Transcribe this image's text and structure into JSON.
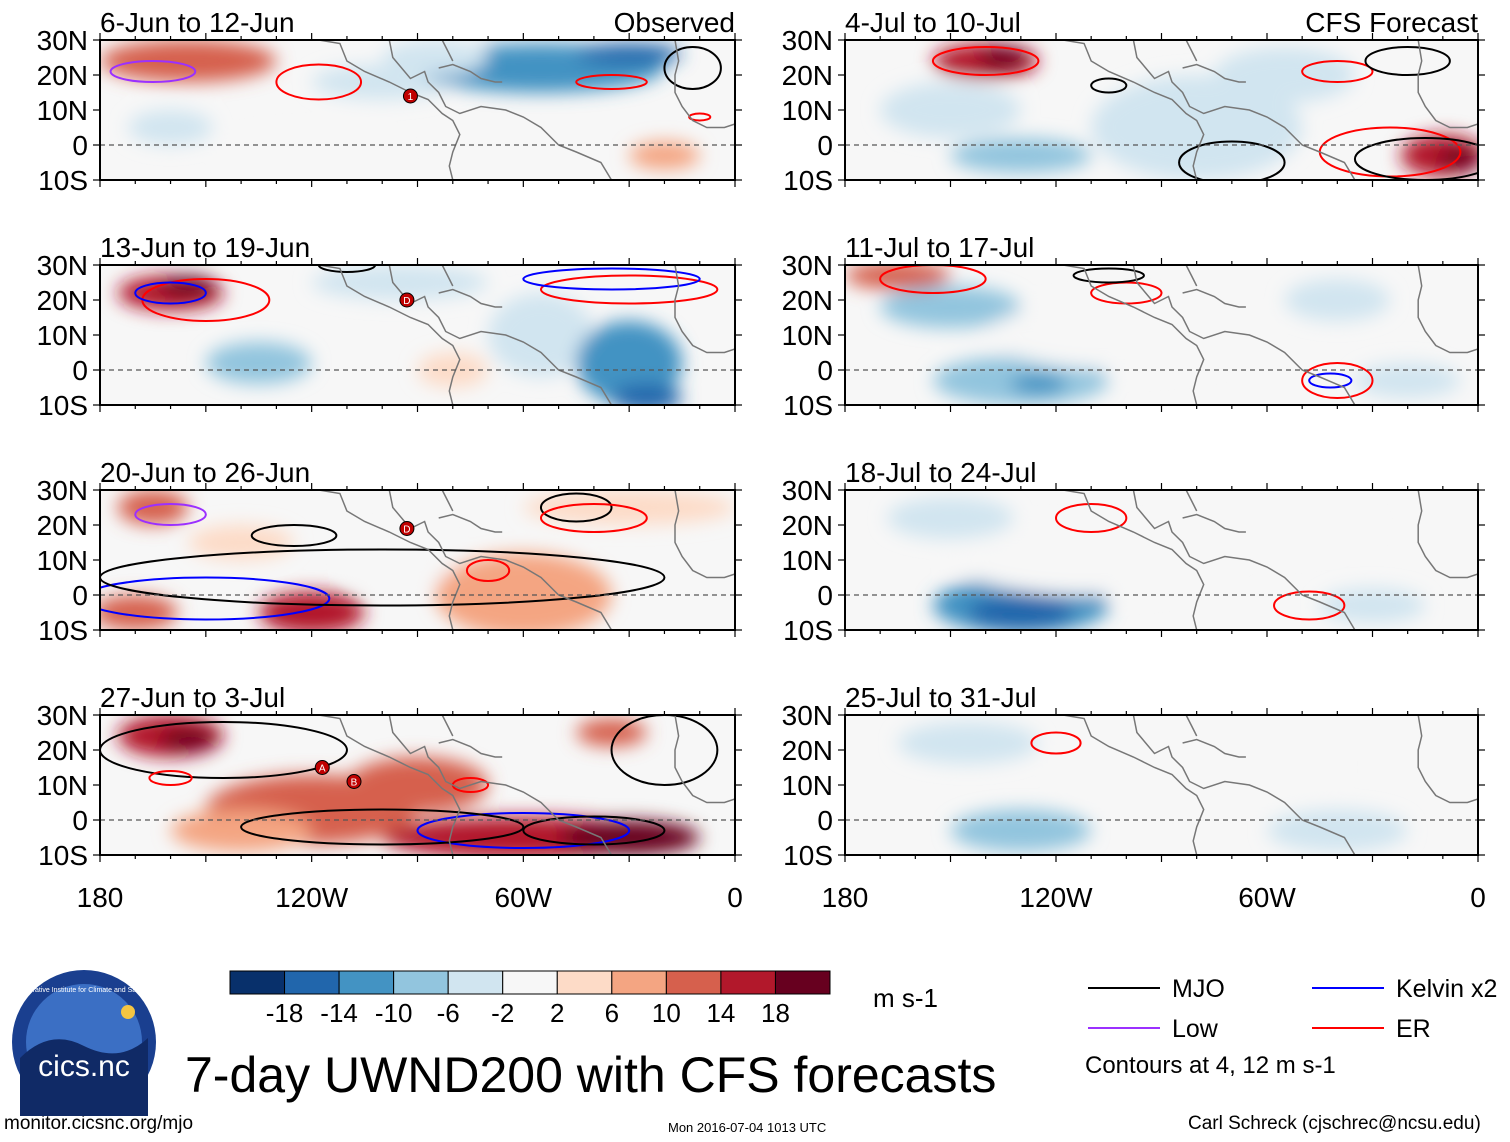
{
  "chart_data": {
    "type": "heatmap",
    "variable": "UWND200",
    "title": "7-day UWND200 with CFS forecasts",
    "units": "m s-1",
    "x_axis": {
      "range": [
        180,
        0
      ],
      "ticks": [
        "180",
        "120W",
        "60W",
        "0"
      ],
      "tick_values": [
        180,
        120,
        60,
        0
      ]
    },
    "y_axis": {
      "range": [
        -10,
        30
      ],
      "ticks": [
        "30N",
        "20N",
        "10N",
        "0",
        "10S"
      ],
      "tick_values": [
        30,
        20,
        10,
        0,
        -10
      ]
    },
    "colorbar": {
      "levels": [
        -18,
        -14,
        -10,
        -6,
        -2,
        2,
        6,
        10,
        14,
        18
      ],
      "labels": [
        "-18",
        "-14",
        "-10",
        "-6",
        "-2",
        "2",
        "6",
        "10",
        "14",
        "18"
      ],
      "colors": [
        "#08306b",
        "#2166ac",
        "#4393c3",
        "#92c5de",
        "#d1e5f0",
        "#f7f7f7",
        "#fddbc7",
        "#f4a582",
        "#d6604d",
        "#b2182b",
        "#67001f"
      ]
    },
    "panels": [
      {
        "column": "observed",
        "label": "6-Jun to 12-Jun",
        "tag": "Observed"
      },
      {
        "column": "observed",
        "label": "13-Jun to 19-Jun"
      },
      {
        "column": "observed",
        "label": "20-Jun to 26-Jun"
      },
      {
        "column": "observed",
        "label": "27-Jun to 3-Jul"
      },
      {
        "column": "forecast",
        "label": "4-Jul to 10-Jul",
        "tag": "CFS Forecast"
      },
      {
        "column": "forecast",
        "label": "11-Jul to 17-Jul"
      },
      {
        "column": "forecast",
        "label": "18-Jul to 24-Jul"
      },
      {
        "column": "forecast",
        "label": "25-Jul to 31-Jul"
      }
    ],
    "storm_markers": [
      {
        "panel": 0,
        "label": "1",
        "lon": -92,
        "lat": 14
      },
      {
        "panel": 1,
        "label": "D",
        "lon": -93,
        "lat": 20
      },
      {
        "panel": 2,
        "label": "D",
        "lon": -93,
        "lat": 19
      },
      {
        "panel": 3,
        "label": "A",
        "lon": -117,
        "lat": 15
      },
      {
        "panel": 3,
        "label": "B",
        "lon": -108,
        "lat": 11
      }
    ],
    "contour_legend": [
      {
        "name": "MJO",
        "color": "#000000"
      },
      {
        "name": "Kelvin x2",
        "color": "#0000ff"
      },
      {
        "name": "Low",
        "color": "#9b30ff"
      },
      {
        "name": "ER",
        "color": "#ff0000"
      }
    ],
    "contour_note": "Contours at 4, 12 m s-1"
  },
  "footer": {
    "url": "monitor.cicsnc.org/mjo",
    "timestamp": "Mon 2016-07-04 1013 UTC",
    "credit": "Carl Schreck (cjschrec@ncsu.edu)"
  },
  "logo": {
    "text": "cics.nc",
    "arc_text": "Cooperative Institute for Climate and Satellites"
  },
  "colors": {
    "background": "#ffffff",
    "frame": "#000000",
    "coast": "#777777"
  }
}
